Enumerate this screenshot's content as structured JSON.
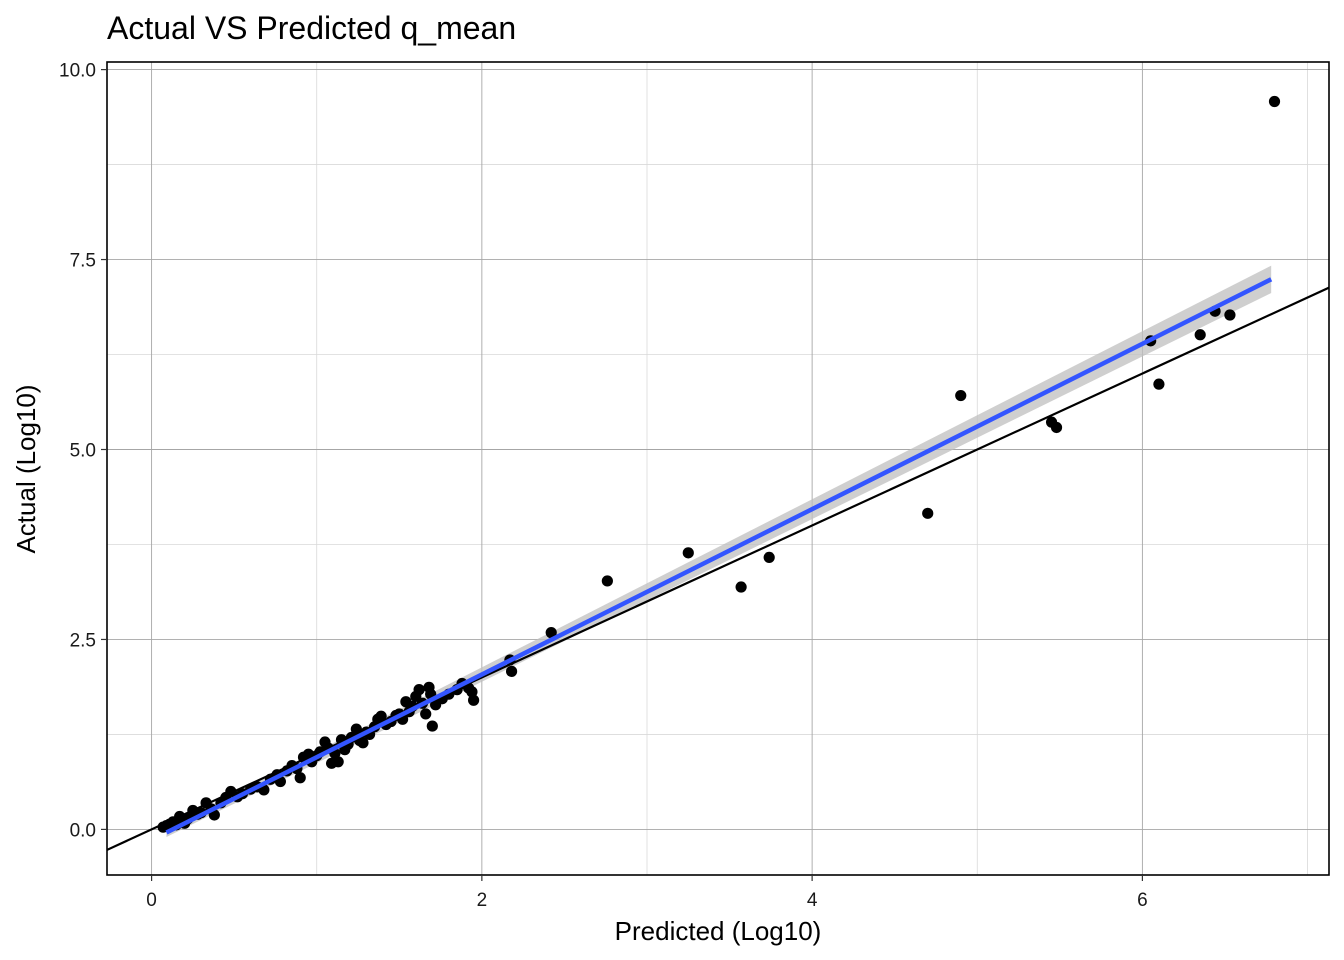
{
  "chart_data": {
    "type": "scatter",
    "title": "Actual VS Predicted q_mean",
    "xlabel": "Predicted (Log10)",
    "ylabel": "Actual (Log10)",
    "xlim": [
      -0.27,
      7.13
    ],
    "ylim": [
      -0.6,
      10.1
    ],
    "x_ticks": [
      0,
      2,
      4,
      6
    ],
    "x_tick_labels": [
      "0",
      "2",
      "4",
      "6"
    ],
    "y_ticks": [
      0,
      2.5,
      5,
      7.5,
      10
    ],
    "y_tick_labels": [
      "0.0",
      "2.5",
      "5.0",
      "7.5",
      "10.0"
    ],
    "grid": true,
    "legend": "none",
    "colors": {
      "points": "#000000",
      "fit_line": "#3355ff",
      "confidence_band": "#bfbfbf",
      "identity_line": "#000000",
      "grid_major": "#a6a6a6",
      "grid_minor": "#d9d9d9"
    },
    "identity_line": {
      "slope": 1,
      "intercept": 0
    },
    "fit_line": {
      "x": [
        0.09,
        6.78
      ],
      "y": [
        -0.04,
        7.24
      ],
      "band_halfwidth_start": 0.06,
      "band_halfwidth_end": 0.18
    },
    "points": [
      [
        0.07,
        0.03
      ],
      [
        0.09,
        0.05
      ],
      [
        0.11,
        0.07
      ],
      [
        0.13,
        0.1
      ],
      [
        0.15,
        0.06
      ],
      [
        0.17,
        0.17
      ],
      [
        0.2,
        0.08
      ],
      [
        0.22,
        0.14
      ],
      [
        0.25,
        0.25
      ],
      [
        0.28,
        0.2
      ],
      [
        0.3,
        0.22
      ],
      [
        0.33,
        0.35
      ],
      [
        0.36,
        0.27
      ],
      [
        0.38,
        0.19
      ],
      [
        0.42,
        0.35
      ],
      [
        0.45,
        0.42
      ],
      [
        0.48,
        0.5
      ],
      [
        0.52,
        0.43
      ],
      [
        0.55,
        0.47
      ],
      [
        0.6,
        0.53
      ],
      [
        0.64,
        0.56
      ],
      [
        0.68,
        0.52
      ],
      [
        0.72,
        0.66
      ],
      [
        0.76,
        0.72
      ],
      [
        0.78,
        0.63
      ],
      [
        0.82,
        0.77
      ],
      [
        0.85,
        0.84
      ],
      [
        0.88,
        0.8
      ],
      [
        0.9,
        0.68
      ],
      [
        0.92,
        0.95
      ],
      [
        0.95,
        0.99
      ],
      [
        0.97,
        0.89
      ],
      [
        1.0,
        0.97
      ],
      [
        1.02,
        1.02
      ],
      [
        1.05,
        1.15
      ],
      [
        1.07,
        1.07
      ],
      [
        1.09,
        0.87
      ],
      [
        1.11,
        1.0
      ],
      [
        1.13,
        0.89
      ],
      [
        1.15,
        1.18
      ],
      [
        1.17,
        1.05
      ],
      [
        1.19,
        1.12
      ],
      [
        1.21,
        1.21
      ],
      [
        1.24,
        1.32
      ],
      [
        1.26,
        1.17
      ],
      [
        1.28,
        1.14
      ],
      [
        1.3,
        1.28
      ],
      [
        1.32,
        1.25
      ],
      [
        1.35,
        1.35
      ],
      [
        1.37,
        1.45
      ],
      [
        1.39,
        1.49
      ],
      [
        1.42,
        1.38
      ],
      [
        1.45,
        1.42
      ],
      [
        1.48,
        1.5
      ],
      [
        1.5,
        1.52
      ],
      [
        1.52,
        1.45
      ],
      [
        1.54,
        1.68
      ],
      [
        1.56,
        1.55
      ],
      [
        1.58,
        1.62
      ],
      [
        1.6,
        1.75
      ],
      [
        1.62,
        1.84
      ],
      [
        1.64,
        1.66
      ],
      [
        1.66,
        1.52
      ],
      [
        1.68,
        1.87
      ],
      [
        1.69,
        1.78
      ],
      [
        1.7,
        1.36
      ],
      [
        1.72,
        1.64
      ],
      [
        1.76,
        1.72
      ],
      [
        1.8,
        1.78
      ],
      [
        1.85,
        1.84
      ],
      [
        1.88,
        1.92
      ],
      [
        1.92,
        1.86
      ],
      [
        1.94,
        1.81
      ],
      [
        1.95,
        1.7
      ],
      [
        2.17,
        2.23
      ],
      [
        2.18,
        2.08
      ],
      [
        2.42,
        2.59
      ],
      [
        2.76,
        3.27
      ],
      [
        3.25,
        3.64
      ],
      [
        3.57,
        3.19
      ],
      [
        3.74,
        3.58
      ],
      [
        4.7,
        4.16
      ],
      [
        4.9,
        5.71
      ],
      [
        5.45,
        5.36
      ],
      [
        5.48,
        5.29
      ],
      [
        6.05,
        6.43
      ],
      [
        6.1,
        5.86
      ],
      [
        6.35,
        6.51
      ],
      [
        6.44,
        6.82
      ],
      [
        6.53,
        6.77
      ],
      [
        6.8,
        9.58
      ]
    ]
  }
}
